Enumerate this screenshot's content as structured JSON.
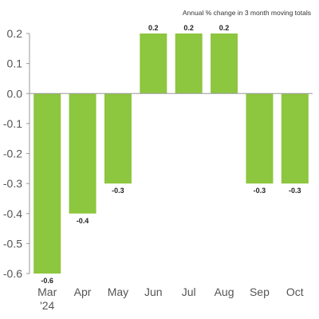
{
  "chart_data": {
    "type": "bar",
    "subtitle": "Annual % change in 3 month moving totals",
    "categories": [
      "Mar '24",
      "Apr",
      "May",
      "Jun",
      "Jul",
      "Aug",
      "Sep",
      "Oct"
    ],
    "category_lines": [
      [
        "Mar",
        "'24"
      ],
      [
        "Apr"
      ],
      [
        "May"
      ],
      [
        "Jun"
      ],
      [
        "Jul"
      ],
      [
        "Aug"
      ],
      [
        "Sep"
      ],
      [
        "Oct"
      ]
    ],
    "values": [
      -0.6,
      -0.4,
      -0.3,
      0.2,
      0.2,
      0.2,
      -0.3,
      -0.3
    ],
    "data_labels": [
      "-0.6",
      "-0.4",
      "-0.3",
      "0.2",
      "0.2",
      "0.2",
      "-0.3",
      "-0.3"
    ],
    "ylim": [
      -0.6,
      0.2
    ],
    "yticks": [
      0.2,
      0.1,
      0.0,
      -0.1,
      -0.2,
      -0.3,
      -0.4,
      -0.5,
      -0.6
    ],
    "ytick_labels": [
      "0.2",
      "0.1",
      "0.0",
      "-0.1",
      "-0.2",
      "-0.3",
      "-0.4",
      "-0.5",
      "-0.6"
    ],
    "grid": false,
    "legend": "none",
    "bar_color": "#8dc63f",
    "axis_color": "#999999"
  }
}
